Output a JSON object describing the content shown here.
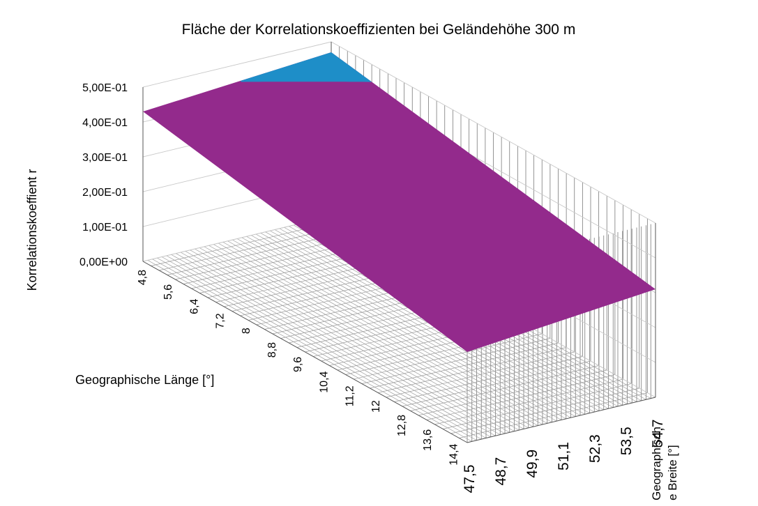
{
  "chart_data": {
    "type": "surface",
    "title": "Fläche der Korrelationskoeffizienten bei Geländehöhe 300 m",
    "xlabel": "Geographische Länge [°]",
    "ylabel": "Korrelationskoeffient r",
    "zlabel_lines": [
      "Geographisch",
      "e Breite [°]"
    ],
    "x_ticks": [
      "4,8",
      "5,6",
      "6,4",
      "7,2",
      "8",
      "8,8",
      "9,6",
      "10,4",
      "11,2",
      "12",
      "12,8",
      "13,6",
      "14,4"
    ],
    "y_ticks": [
      "0,00E+00",
      "1,00E-01",
      "2,00E-01",
      "3,00E-01",
      "4,00E-01",
      "5,00E-01"
    ],
    "z_ticks": [
      "47,5",
      "48,7",
      "49,9",
      "51,1",
      "52,3",
      "53,5",
      "54,7"
    ],
    "ylim": [
      0,
      0.5
    ],
    "x_range": [
      4.8,
      14.8
    ],
    "z_range": [
      47.5,
      54.7
    ],
    "surface_corners": {
      "lon_4.8_lat_47.5": 0.43,
      "lon_4.8_lat_54.7": 0.47,
      "lon_14.8_lat_47.5": 0.26,
      "lon_14.8_lat_54.7": 0.31
    },
    "bands": [
      {
        "range": "0,40-0,50",
        "color": "#1e8ec8"
      },
      {
        "range": "0,00-0,40",
        "color": "#932a8c"
      }
    ],
    "grid": true,
    "legend": "none"
  }
}
